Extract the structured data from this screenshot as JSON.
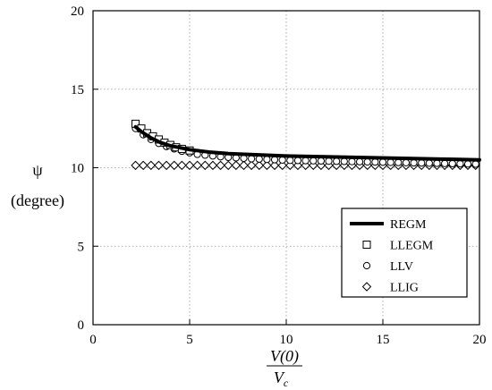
{
  "chart_data": {
    "type": "line",
    "title": "",
    "xlabel_num": "V(0)",
    "xlabel_den": "V",
    "xlabel_den_sub": "c",
    "ylabel_symbol": "ψ",
    "ylabel_unit": "(degree)",
    "xlim": [
      0,
      20
    ],
    "ylim": [
      0,
      20
    ],
    "x_ticks": [
      "0",
      "5",
      "10",
      "15",
      "20"
    ],
    "y_ticks": [
      "0",
      "5",
      "10",
      "15",
      "20"
    ],
    "grid": true,
    "legend_position": "bottom-right",
    "series": [
      {
        "name": "REGM",
        "marker": "line",
        "x": [
          2.2,
          2.5,
          3,
          3.5,
          4,
          5,
          6,
          7,
          8,
          10,
          12,
          14,
          16,
          18,
          20
        ],
        "y": [
          12.6,
          12.3,
          11.9,
          11.6,
          11.4,
          11.15,
          11.0,
          10.9,
          10.85,
          10.75,
          10.7,
          10.65,
          10.6,
          10.55,
          10.5
        ]
      },
      {
        "name": "LLEGM",
        "marker": "square",
        "x": [
          2.2,
          2.5,
          2.8,
          3.1,
          3.4,
          3.7,
          4.0,
          4.3,
          4.6,
          5.0
        ],
        "y": [
          12.8,
          12.5,
          12.2,
          12.0,
          11.8,
          11.6,
          11.45,
          11.3,
          11.2,
          11.1
        ]
      },
      {
        "name": "LLV",
        "marker": "circle",
        "x": [
          2.2,
          2.6,
          3.0,
          3.4,
          3.8,
          4.2,
          4.6,
          5.0,
          5.4,
          5.8,
          6.2,
          6.6,
          7.0,
          7.4,
          7.8,
          8.2,
          8.6,
          9.0,
          9.4,
          9.8,
          10.2,
          10.6,
          11.0,
          11.4,
          11.8,
          12.2,
          12.6,
          13.0,
          13.4,
          13.8,
          14.2,
          14.6,
          15.0,
          15.4,
          15.8,
          16.2,
          16.6,
          17.0,
          17.4,
          17.8,
          18.2,
          18.6,
          19.0,
          19.4,
          19.8
        ],
        "y": [
          12.5,
          12.1,
          11.8,
          11.55,
          11.35,
          11.2,
          11.05,
          10.95,
          10.85,
          10.8,
          10.75,
          10.7,
          10.66,
          10.63,
          10.6,
          10.57,
          10.55,
          10.53,
          10.51,
          10.49,
          10.47,
          10.46,
          10.45,
          10.44,
          10.43,
          10.42,
          10.41,
          10.4,
          10.39,
          10.38,
          10.37,
          10.36,
          10.35,
          10.34,
          10.33,
          10.32,
          10.31,
          10.3,
          10.29,
          10.28,
          10.27,
          10.26,
          10.25,
          10.24,
          10.23
        ]
      },
      {
        "name": "LLIG",
        "marker": "diamond",
        "x": [
          2.2,
          2.6,
          3.0,
          3.4,
          3.8,
          4.2,
          4.6,
          5.0,
          5.4,
          5.8,
          6.2,
          6.6,
          7.0,
          7.4,
          7.8,
          8.2,
          8.6,
          9.0,
          9.4,
          9.8,
          10.2,
          10.6,
          11.0,
          11.4,
          11.8,
          12.2,
          12.6,
          13.0,
          13.4,
          13.8,
          14.2,
          14.6,
          15.0,
          15.4,
          15.8,
          16.2,
          16.6,
          17.0,
          17.4,
          17.8,
          18.2,
          18.6,
          19.0,
          19.4,
          19.8
        ],
        "y": [
          10.15,
          10.15,
          10.15,
          10.15,
          10.15,
          10.15,
          10.15,
          10.15,
          10.15,
          10.15,
          10.15,
          10.15,
          10.15,
          10.15,
          10.15,
          10.15,
          10.15,
          10.15,
          10.15,
          10.15,
          10.15,
          10.15,
          10.15,
          10.15,
          10.15,
          10.15,
          10.15,
          10.15,
          10.15,
          10.15,
          10.15,
          10.15,
          10.15,
          10.15,
          10.15,
          10.15,
          10.15,
          10.15,
          10.15,
          10.15,
          10.15,
          10.15,
          10.15,
          10.15,
          10.15
        ]
      }
    ]
  }
}
